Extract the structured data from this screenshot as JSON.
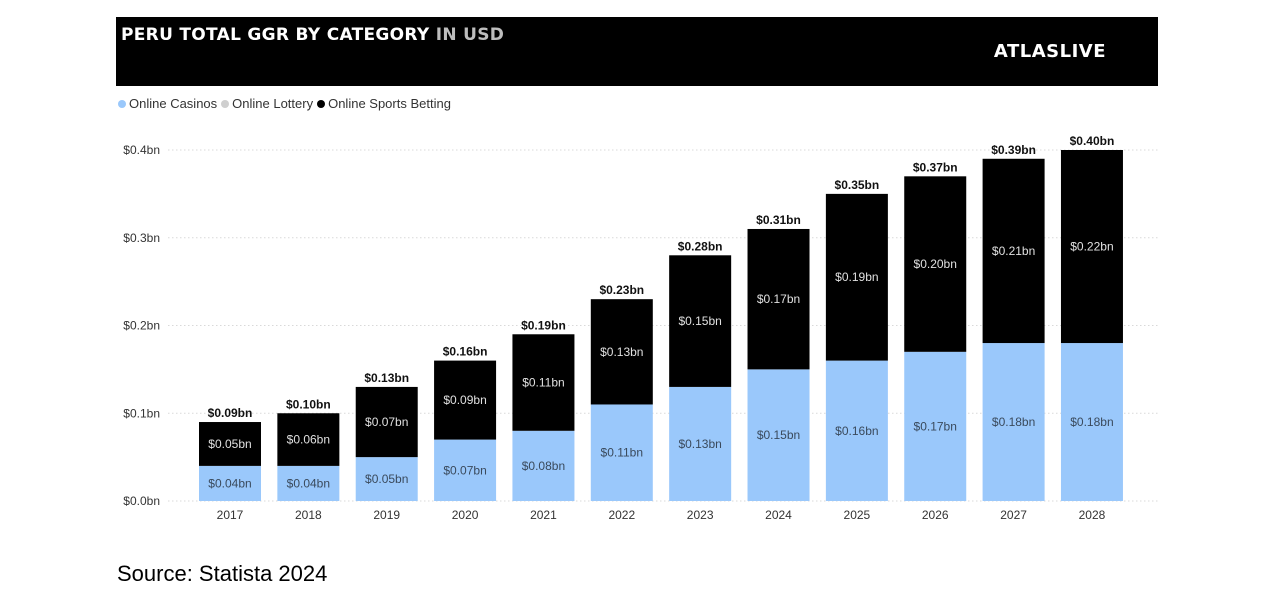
{
  "header": {
    "title_main": "PERU TOTAL GGR BY CATEGORY",
    "title_suffix": "IN USD",
    "logo": "ATLASLIVE"
  },
  "colors": {
    "online_casinos": "#9ac8fb",
    "online_lottery": "#cfcfcf",
    "online_sports_betting": "#000000",
    "header_bg": "#000000",
    "grid": "#d9d9d9"
  },
  "source": "Source: Statista 2024",
  "chart_data": {
    "type": "bar",
    "stacked": true,
    "title": "PERU TOTAL GGR BY CATEGORY IN USD",
    "xlabel": "",
    "ylabel": "",
    "ylim": [
      0,
      0.4
    ],
    "yticks": [
      0,
      0.1,
      0.2,
      0.3,
      0.4
    ],
    "ytick_labels": [
      "$0.0bn",
      "$0.1bn",
      "$0.2bn",
      "$0.3bn",
      "$0.4bn"
    ],
    "grid": true,
    "legend_position": "top-left",
    "legend": [
      "Online Casinos",
      "Online Lottery",
      "Online Sports Betting"
    ],
    "categories": [
      "2017",
      "2018",
      "2019",
      "2020",
      "2021",
      "2022",
      "2023",
      "2024",
      "2025",
      "2026",
      "2027",
      "2028"
    ],
    "series": [
      {
        "name": "Online Casinos",
        "color": "#9ac8fb",
        "values": [
          0.04,
          0.04,
          0.05,
          0.07,
          0.08,
          0.11,
          0.13,
          0.15,
          0.16,
          0.17,
          0.18,
          0.18
        ],
        "labels": [
          "$0.04bn",
          "$0.04bn",
          "$0.05bn",
          "$0.07bn",
          "$0.08bn",
          "$0.11bn",
          "$0.13bn",
          "$0.15bn",
          "$0.16bn",
          "$0.17bn",
          "$0.18bn",
          "$0.18bn"
        ]
      },
      {
        "name": "Online Lottery",
        "color": "#cfcfcf",
        "values": [
          0,
          0,
          0,
          0,
          0,
          0,
          0,
          0,
          0,
          0,
          0,
          0
        ],
        "labels": []
      },
      {
        "name": "Online Sports Betting",
        "color": "#000000",
        "values": [
          0.05,
          0.06,
          0.07,
          0.09,
          0.11,
          0.13,
          0.15,
          0.17,
          0.19,
          0.2,
          0.21,
          0.22
        ],
        "labels": [
          "$0.05bn",
          "$0.06bn",
          "$0.07bn",
          "$0.09bn",
          "$0.11bn",
          "$0.13bn",
          "$0.15bn",
          "$0.17bn",
          "$0.19bn",
          "$0.20bn",
          "$0.21bn",
          "$0.22bn"
        ]
      }
    ],
    "totals": [
      0.09,
      0.1,
      0.13,
      0.16,
      0.19,
      0.23,
      0.28,
      0.31,
      0.35,
      0.37,
      0.39,
      0.4
    ],
    "total_labels": [
      "$0.09bn",
      "$0.10bn",
      "$0.13bn",
      "$0.16bn",
      "$0.19bn",
      "$0.23bn",
      "$0.28bn",
      "$0.31bn",
      "$0.35bn",
      "$0.37bn",
      "$0.39bn",
      "$0.40bn"
    ]
  }
}
